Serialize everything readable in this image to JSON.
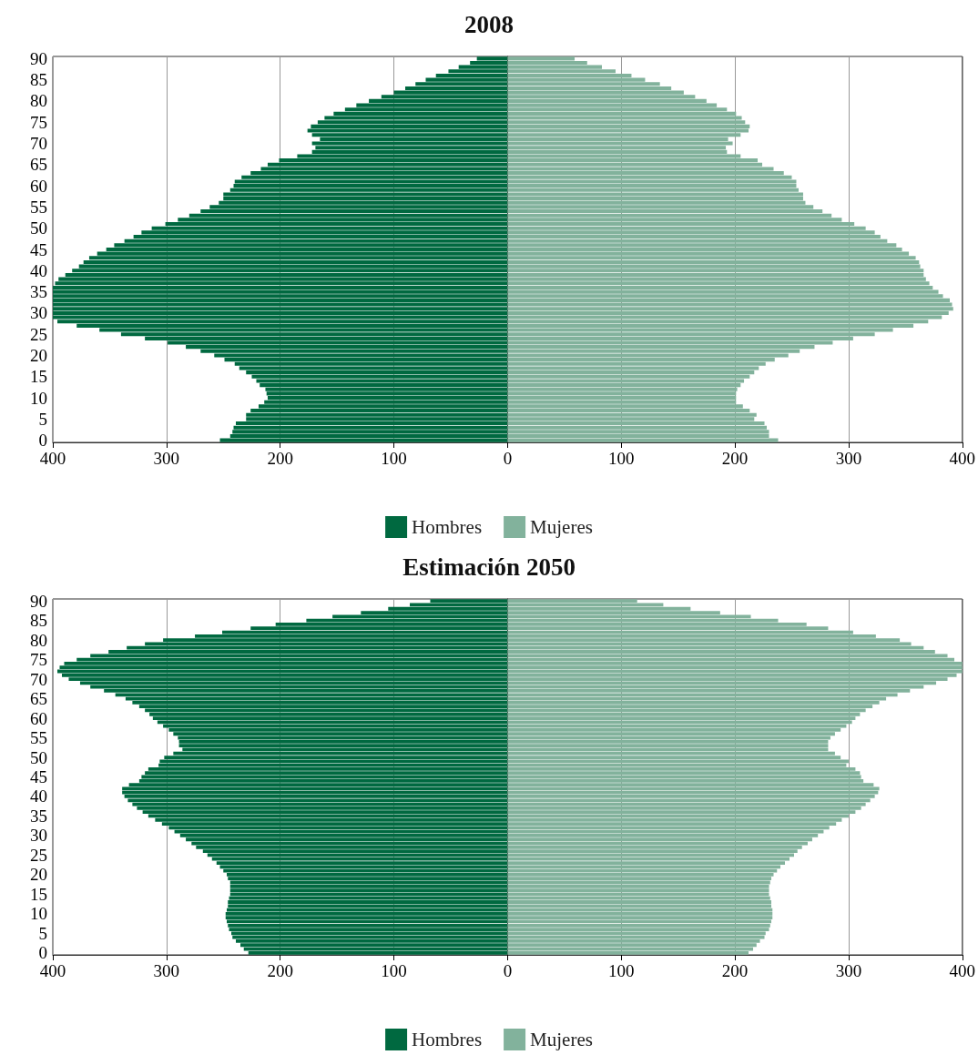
{
  "chart_data": [
    {
      "type": "bar",
      "title": "2008",
      "orientation": "horizontal",
      "stacked": true,
      "grid": "x",
      "legend": "bottom",
      "categories": [
        "90",
        null,
        null,
        null,
        null,
        "85",
        null,
        null,
        null,
        null,
        "80",
        null,
        null,
        null,
        null,
        "75",
        null,
        null,
        null,
        null,
        "70",
        null,
        null,
        null,
        null,
        "65",
        null,
        null,
        null,
        null,
        "60",
        null,
        null,
        null,
        null,
        "55",
        null,
        null,
        null,
        null,
        "50",
        null,
        null,
        null,
        null,
        "45",
        null,
        null,
        null,
        null,
        "40",
        null,
        null,
        null,
        null,
        "35",
        null,
        null,
        null,
        null,
        "30",
        null,
        null,
        null,
        null,
        "25",
        null,
        null,
        null,
        null,
        "20",
        null,
        null,
        null,
        null,
        "15",
        null,
        null,
        null,
        null,
        "10",
        null,
        null,
        null,
        null,
        "5",
        null,
        null,
        null,
        null,
        "0"
      ],
      "xlim": [
        -400,
        400
      ],
      "xticks": [
        {
          "value": -400,
          "label": "400"
        },
        {
          "value": -300,
          "label": "300"
        },
        {
          "value": -200,
          "label": "200"
        },
        {
          "value": -100,
          "label": "100"
        },
        0,
        100,
        200,
        300,
        400
      ],
      "series": [
        {
          "name": "Hombres",
          "color": "#006940",
          "values": [
            -27,
            -33,
            -43,
            -52,
            -63,
            -72,
            -81,
            -90,
            -100,
            -111,
            -122,
            -133,
            -143,
            -153,
            -161,
            -167,
            -173,
            -176,
            -172,
            -165,
            -172,
            -169,
            -172,
            -185,
            -201,
            -211,
            -217,
            -226,
            -234,
            -240,
            -241,
            -244,
            -250,
            -250,
            -254,
            -262,
            -270,
            -280,
            -290,
            -301,
            -313,
            -322,
            -329,
            -337,
            -346,
            -353,
            -361,
            -368,
            -373,
            -377,
            -383,
            -389,
            -395,
            -398,
            -400,
            -400,
            -400,
            -400,
            -400,
            -400,
            -400,
            -400,
            -396,
            -379,
            -359,
            -340,
            -319,
            -299,
            -283,
            -270,
            -258,
            -249,
            -240,
            -236,
            -230,
            -225,
            -221,
            -218,
            -213,
            -212,
            -211,
            -214,
            -219,
            -226,
            -230,
            -230,
            -239,
            -241,
            -242,
            -244,
            -253
          ]
        },
        {
          "name": "Mujeres",
          "color": "#82b29c",
          "values": [
            59,
            70,
            83,
            95,
            109,
            121,
            134,
            144,
            155,
            165,
            175,
            184,
            193,
            201,
            206,
            209,
            213,
            212,
            205,
            194,
            198,
            192,
            193,
            205,
            220,
            224,
            234,
            243,
            250,
            254,
            254,
            256,
            260,
            260,
            262,
            269,
            277,
            285,
            294,
            305,
            315,
            323,
            328,
            334,
            342,
            347,
            353,
            359,
            362,
            363,
            366,
            366,
            368,
            371,
            374,
            379,
            383,
            389,
            391,
            392,
            388,
            382,
            370,
            357,
            339,
            323,
            304,
            286,
            270,
            257,
            247,
            235,
            227,
            221,
            217,
            213,
            208,
            205,
            202,
            201,
            201,
            201,
            207,
            213,
            219,
            217,
            226,
            228,
            230,
            230,
            238
          ]
        }
      ]
    },
    {
      "type": "bar",
      "title": "Estimación 2050",
      "orientation": "horizontal",
      "stacked": true,
      "grid": "x",
      "legend": "bottom",
      "categories": [
        "90",
        null,
        null,
        null,
        null,
        "85",
        null,
        null,
        null,
        null,
        "80",
        null,
        null,
        null,
        null,
        "75",
        null,
        null,
        null,
        null,
        "70",
        null,
        null,
        null,
        null,
        "65",
        null,
        null,
        null,
        null,
        "60",
        null,
        null,
        null,
        null,
        "55",
        null,
        null,
        null,
        null,
        "50",
        null,
        null,
        null,
        null,
        "45",
        null,
        null,
        null,
        null,
        "40",
        null,
        null,
        null,
        null,
        "35",
        null,
        null,
        null,
        null,
        "30",
        null,
        null,
        null,
        null,
        "25",
        null,
        null,
        null,
        null,
        "20",
        null,
        null,
        null,
        null,
        "15",
        null,
        null,
        null,
        null,
        "10",
        null,
        null,
        null,
        null,
        "5",
        null,
        null,
        null,
        null,
        "0"
      ],
      "xlim": [
        -400,
        400
      ],
      "xticks": [
        {
          "value": -400,
          "label": "400"
        },
        {
          "value": -300,
          "label": "300"
        },
        {
          "value": -200,
          "label": "200"
        },
        {
          "value": -100,
          "label": "100"
        },
        0,
        100,
        200,
        300,
        400
      ],
      "series": [
        {
          "name": "Hombres",
          "color": "#006940",
          "values": [
            -68,
            -86,
            -105,
            -129,
            -154,
            -177,
            -204,
            -226,
            -251,
            -275,
            -303,
            -319,
            -335,
            -351,
            -367,
            -379,
            -390,
            -394,
            -396,
            -392,
            -386,
            -376,
            -367,
            -355,
            -345,
            -336,
            -330,
            -324,
            -319,
            -315,
            -312,
            -308,
            -303,
            -298,
            -294,
            -290,
            -289,
            -289,
            -286,
            -294,
            -302,
            -306,
            -307,
            -316,
            -319,
            -322,
            -324,
            -333,
            -339,
            -339,
            -337,
            -334,
            -330,
            -326,
            -321,
            -316,
            -310,
            -304,
            -298,
            -293,
            -288,
            -283,
            -278,
            -274,
            -268,
            -264,
            -260,
            -256,
            -253,
            -250,
            -247,
            -246,
            -244,
            -244,
            -244,
            -244,
            -245,
            -246,
            -246,
            -247,
            -248,
            -248,
            -247,
            -246,
            -245,
            -243,
            -242,
            -239,
            -235,
            -232,
            -228
          ]
        },
        {
          "name": "Mujeres",
          "color": "#82b29c",
          "values": [
            114,
            137,
            161,
            187,
            214,
            238,
            263,
            282,
            304,
            324,
            345,
            355,
            366,
            376,
            387,
            393,
            400,
            400,
            400,
            395,
            387,
            377,
            366,
            354,
            343,
            333,
            327,
            321,
            315,
            310,
            306,
            303,
            298,
            293,
            288,
            284,
            282,
            282,
            282,
            288,
            293,
            300,
            298,
            306,
            310,
            311,
            313,
            322,
            327,
            326,
            323,
            319,
            315,
            311,
            306,
            300,
            294,
            289,
            283,
            278,
            273,
            268,
            264,
            259,
            255,
            252,
            248,
            244,
            240,
            237,
            234,
            232,
            231,
            230,
            230,
            230,
            231,
            232,
            232,
            233,
            233,
            233,
            232,
            231,
            230,
            227,
            226,
            222,
            219,
            216,
            212
          ]
        }
      ]
    }
  ]
}
